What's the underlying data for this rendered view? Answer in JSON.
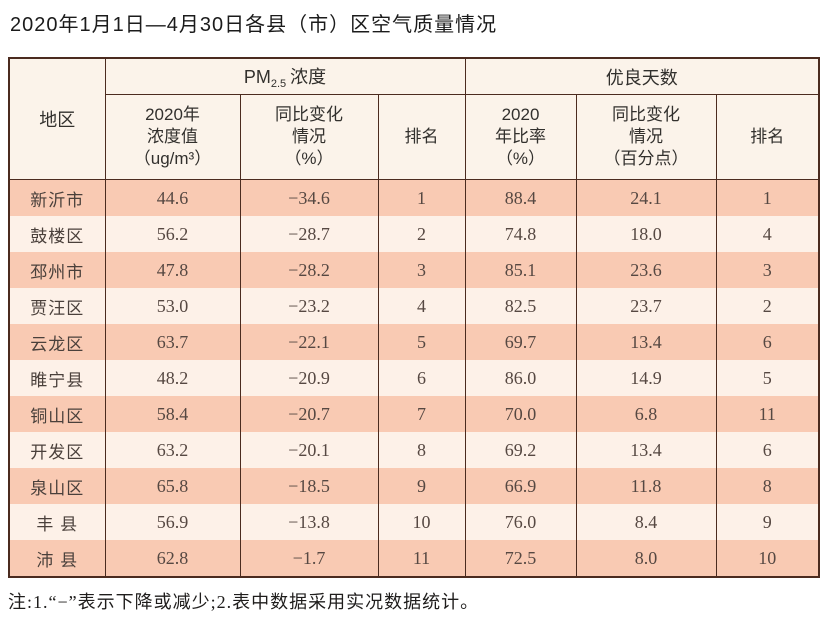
{
  "page": {
    "title": "2020年1月1日—4月30日各县（市）区空气质量情况",
    "note": "注:1.“−”表示下降或减少;2.表中数据采用实况数据统计。"
  },
  "colors": {
    "table_border": "#4b2b1f",
    "header_background": "#fbf3ea",
    "row_odd_background": "#f9cab3",
    "row_even_background": "#fdf1e8"
  },
  "table": {
    "header": {
      "region": "地区",
      "pm25_group": {
        "prefix": "PM",
        "sub": "2.5",
        "suffix": "浓度"
      },
      "good_days_group": "优良天数",
      "pm25_value_col": "2020年\n浓度值\n（ug/m³）",
      "pm25_change_col": "同比变化\n情况\n（%）",
      "pm25_rank_col": "排名",
      "good_rate_col": "2020\n年比率\n（%）",
      "good_change_col": "同比变化\n情况\n（百分点）",
      "good_rank_col": "排名"
    },
    "rows": [
      {
        "region": "新沂市",
        "pm25_value": "44.6",
        "pm25_change": "−34.6",
        "pm25_rank": "1",
        "good_rate": "88.4",
        "good_change": "24.1",
        "good_rank": "1"
      },
      {
        "region": "鼓楼区",
        "pm25_value": "56.2",
        "pm25_change": "−28.7",
        "pm25_rank": "2",
        "good_rate": "74.8",
        "good_change": "18.0",
        "good_rank": "4"
      },
      {
        "region": "邳州市",
        "pm25_value": "47.8",
        "pm25_change": "−28.2",
        "pm25_rank": "3",
        "good_rate": "85.1",
        "good_change": "23.6",
        "good_rank": "3"
      },
      {
        "region": "贾汪区",
        "pm25_value": "53.0",
        "pm25_change": "−23.2",
        "pm25_rank": "4",
        "good_rate": "82.5",
        "good_change": "23.7",
        "good_rank": "2"
      },
      {
        "region": "云龙区",
        "pm25_value": "63.7",
        "pm25_change": "−22.1",
        "pm25_rank": "5",
        "good_rate": "69.7",
        "good_change": "13.4",
        "good_rank": "6"
      },
      {
        "region": "睢宁县",
        "pm25_value": "48.2",
        "pm25_change": "−20.9",
        "pm25_rank": "6",
        "good_rate": "86.0",
        "good_change": "14.9",
        "good_rank": "5"
      },
      {
        "region": "铜山区",
        "pm25_value": "58.4",
        "pm25_change": "−20.7",
        "pm25_rank": "7",
        "good_rate": "70.0",
        "good_change": "6.8",
        "good_rank": "11"
      },
      {
        "region": "开发区",
        "pm25_value": "63.2",
        "pm25_change": "−20.1",
        "pm25_rank": "8",
        "good_rate": "69.2",
        "good_change": "13.4",
        "good_rank": "6"
      },
      {
        "region": "泉山区",
        "pm25_value": "65.8",
        "pm25_change": "−18.5",
        "pm25_rank": "9",
        "good_rate": "66.9",
        "good_change": "11.8",
        "good_rank": "8"
      },
      {
        "region": "丰 县",
        "pm25_value": "56.9",
        "pm25_change": "−13.8",
        "pm25_rank": "10",
        "good_rate": "76.0",
        "good_change": "8.4",
        "good_rank": "9"
      },
      {
        "region": "沛 县",
        "pm25_value": "62.8",
        "pm25_change": "−1.7",
        "pm25_rank": "11",
        "good_rate": "72.5",
        "good_change": "8.0",
        "good_rank": "10"
      }
    ]
  }
}
